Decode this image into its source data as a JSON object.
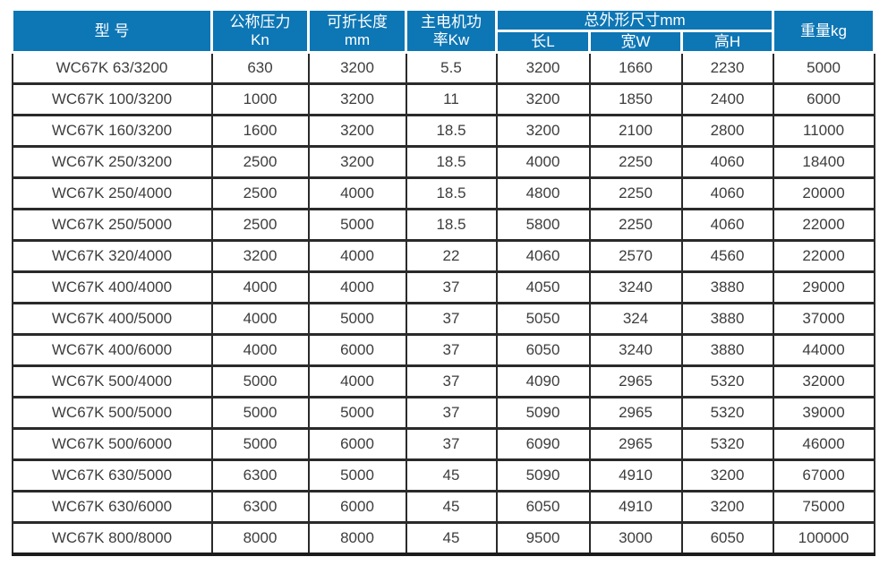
{
  "table": {
    "headers": {
      "model": "型 号",
      "pressure_line1": "公称压力",
      "pressure_line2": "Kn",
      "fold_length_line1": "可折长度",
      "fold_length_line2": "mm",
      "motor_power_line1": "主电机功",
      "motor_power_line2": "率Kw",
      "dimensions_group": "总外形尺寸mm",
      "dim_length": "长L",
      "dim_width": "宽W",
      "dim_height": "高H",
      "weight": "重量kg"
    },
    "column_keys": [
      "model",
      "pressure-kn",
      "fold-length-mm",
      "motor-power-kw",
      "dim-length-l",
      "dim-width-w",
      "dim-height-h",
      "weight-kg"
    ],
    "rows": [
      [
        "WC67K 63/3200",
        "630",
        "3200",
        "5.5",
        "3200",
        "1660",
        "2230",
        "5000"
      ],
      [
        "WC67K 100/3200",
        "1000",
        "3200",
        "11",
        "3200",
        "1850",
        "2400",
        "6000"
      ],
      [
        "WC67K 160/3200",
        "1600",
        "3200",
        "18.5",
        "3200",
        "2100",
        "2800",
        "11000"
      ],
      [
        "WC67K 250/3200",
        "2500",
        "3200",
        "18.5",
        "4000",
        "2250",
        "4060",
        "18400"
      ],
      [
        "WC67K 250/4000",
        "2500",
        "4000",
        "18.5",
        "4800",
        "2250",
        "4060",
        "20000"
      ],
      [
        "WC67K 250/5000",
        "2500",
        "5000",
        "18.5",
        "5800",
        "2250",
        "4060",
        "22000"
      ],
      [
        "WC67K 320/4000",
        "3200",
        "4000",
        "22",
        "4060",
        "2570",
        "4560",
        "22000"
      ],
      [
        "WC67K 400/4000",
        "4000",
        "4000",
        "37",
        "4050",
        "3240",
        "3880",
        "29000"
      ],
      [
        "WC67K 400/5000",
        "4000",
        "5000",
        "37",
        "5050",
        "324",
        "3880",
        "37000"
      ],
      [
        "WC67K 400/6000",
        "4000",
        "6000",
        "37",
        "6050",
        "3240",
        "3880",
        "44000"
      ],
      [
        "WC67K 500/4000",
        "5000",
        "4000",
        "37",
        "4090",
        "2965",
        "5320",
        "32000"
      ],
      [
        "WC67K 500/5000",
        "5000",
        "5000",
        "37",
        "5090",
        "2965",
        "5320",
        "39000"
      ],
      [
        "WC67K 500/6000",
        "5000",
        "6000",
        "37",
        "6090",
        "2965",
        "5320",
        "46000"
      ],
      [
        "WC67K 630/5000",
        "6300",
        "5000",
        "45",
        "5090",
        "4910",
        "3200",
        "67000"
      ],
      [
        "WC67K 630/6000",
        "6300",
        "6000",
        "45",
        "6050",
        "4910",
        "3200",
        "75000"
      ],
      [
        "WC67K 800/8000",
        "8000",
        "8000",
        "45",
        "9500",
        "3000",
        "6050",
        "100000"
      ]
    ]
  },
  "colors": {
    "header_bg": "#0d76b5",
    "header_text": "#ffffff",
    "body_text": "#3d3d3d",
    "grid_line": "#2a2a2a"
  }
}
